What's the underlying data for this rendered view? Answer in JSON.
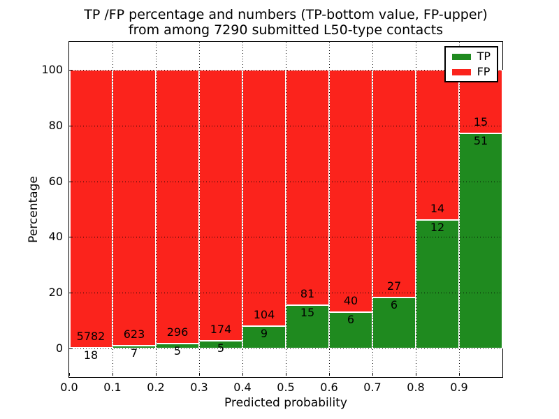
{
  "figure": {
    "title_line1": "TP /FP percentage and numbers (TP-bottom value, FP-upper)",
    "title_line2": "from among 7290 submitted L50-type contacts"
  },
  "chart_data": {
    "type": "bar",
    "stacked": true,
    "title": "TP /FP percentage and numbers (TP-bottom value, FP-upper) from among 7290 submitted L50-type contacts",
    "xlabel": "Predicted probability",
    "ylabel": "Percentage",
    "total_submitted_contacts": 7290,
    "contact_type": "L50",
    "xlim": [
      0.0,
      1.0
    ],
    "ylim": [
      -10,
      110
    ],
    "bin_width": 0.1,
    "bin_edges": [
      0.0,
      0.1,
      0.2,
      0.3,
      0.4,
      0.5,
      0.6,
      0.7,
      0.8,
      0.9,
      1.0
    ],
    "x_tick_labels": [
      "0.0",
      "0.1",
      "0.2",
      "0.3",
      "0.4",
      "0.5",
      "0.6",
      "0.7",
      "0.8",
      "0.9"
    ],
    "y_ticks": [
      0,
      20,
      40,
      60,
      80,
      100
    ],
    "grid_style": "dotted",
    "legend_position": "upper right",
    "series": [
      {
        "name": "TP",
        "color": "#1f8a1f",
        "counts": [
          18,
          7,
          5,
          5,
          9,
          15,
          6,
          6,
          12,
          51
        ]
      },
      {
        "name": "FP",
        "color": "#fb231c",
        "counts": [
          5782,
          623,
          296,
          174,
          104,
          81,
          40,
          27,
          14,
          15
        ]
      }
    ],
    "tp_percent_of_bin": [
      0.31,
      1.11,
      1.66,
      2.79,
      7.96,
      15.63,
      13.04,
      18.18,
      46.15,
      77.27
    ]
  },
  "legend": {
    "items": [
      {
        "label": "TP",
        "color": "#1f8a1f"
      },
      {
        "label": "FP",
        "color": "#fb231c"
      }
    ]
  }
}
